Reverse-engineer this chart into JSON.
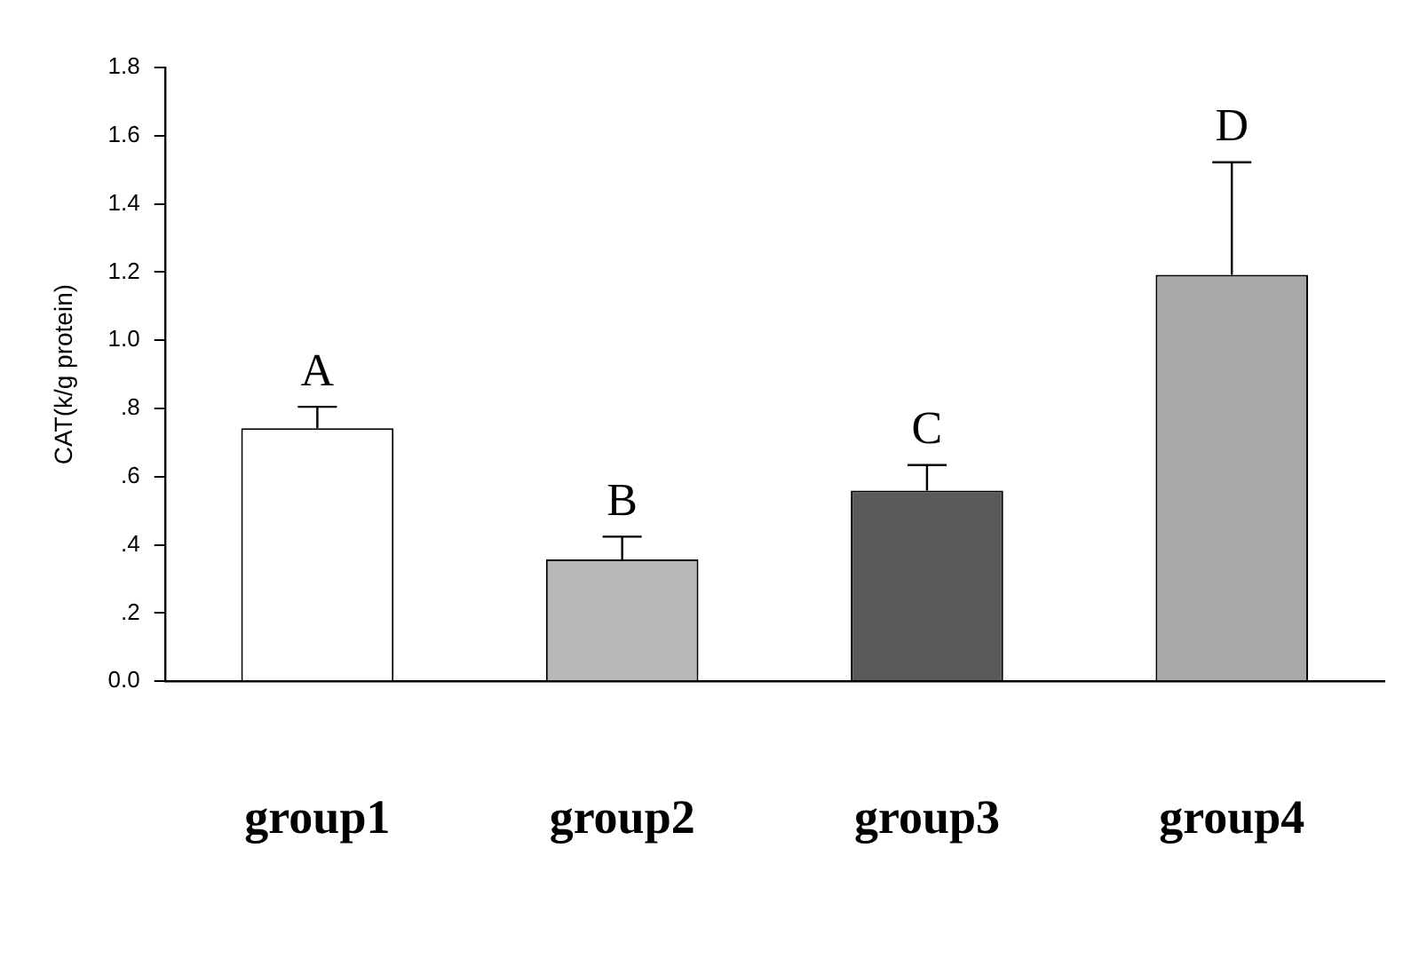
{
  "chart_data": {
    "type": "bar",
    "ylabel": "CAT(k/g protein)",
    "categories": [
      "group1",
      "group2",
      "group3",
      "group4"
    ],
    "values": [
      0.742,
      0.357,
      0.559,
      1.192
    ],
    "colors": [
      "#ffffff",
      "#b8b8b8",
      "#5a5a5a",
      "#a8a8a8"
    ],
    "errors": [
      [
        0.742,
        0.805
      ],
      [
        0.357,
        0.424
      ],
      [
        0.559,
        0.634
      ],
      [
        1.192,
        1.522
      ]
    ],
    "ylim": [
      0,
      1.8
    ],
    "yticks": [
      {
        "value": 0,
        "label": "0.0"
      },
      {
        "value": 0.2,
        "label": ".2"
      },
      {
        "value": 0.4,
        "label": ".4"
      },
      {
        "value": 0.6,
        "label": ".6"
      },
      {
        "value": 0.8,
        "label": ".8"
      },
      {
        "value": 1.0,
        "label": "1.0"
      },
      {
        "value": 1.2,
        "label": "1.2"
      },
      {
        "value": 1.4,
        "label": "1.4"
      },
      {
        "value": 1.6,
        "label": "1.6"
      },
      {
        "value": 1.8,
        "label": "1.8"
      }
    ],
    "annotations": [
      {
        "text": "A",
        "x": "group1",
        "y": 0.805
      },
      {
        "text": "B",
        "x": "group2",
        "y": 0.424
      },
      {
        "text": "C",
        "x": "group3",
        "y": 0.634
      },
      {
        "text": "D",
        "x": "group4",
        "y": 1.522
      }
    ],
    "grid": false,
    "legend": false
  }
}
